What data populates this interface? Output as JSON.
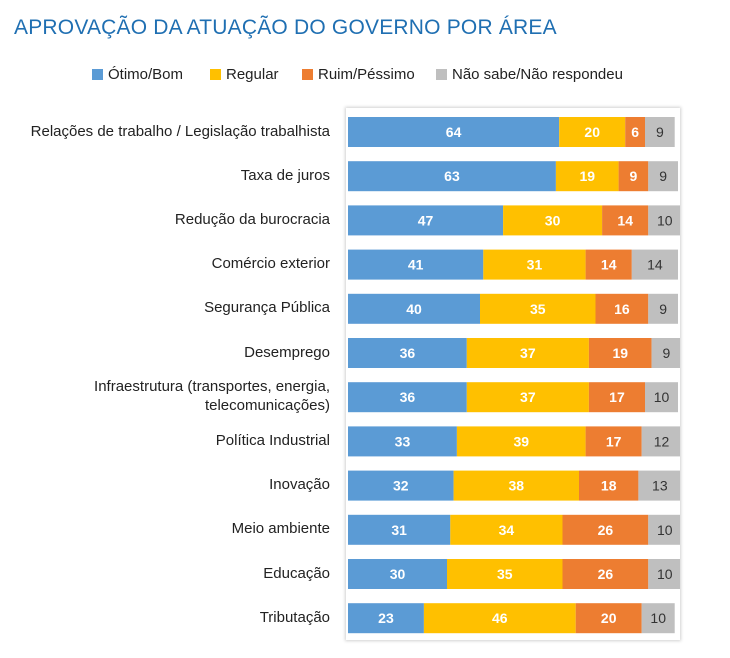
{
  "chart_data": {
    "type": "bar",
    "orientation": "horizontal-stacked",
    "title": "APROVAÇÃO DA ATUAÇÃO DO GOVERNO POR ÁREA",
    "legend_position": "top",
    "categories": [
      [
        "Relações de trabalho / Legislação trabalhista"
      ],
      [
        "Taxa de juros"
      ],
      [
        "Redução da burocracia"
      ],
      [
        "Comércio exterior"
      ],
      [
        "Segurança Pública"
      ],
      [
        "Desemprego"
      ],
      [
        "Infraestrutura (transportes, energia,",
        "telecomunicações)"
      ],
      [
        "Política Industrial"
      ],
      [
        "Inovação"
      ],
      [
        "Meio ambiente"
      ],
      [
        "Educação"
      ],
      [
        "Tributação"
      ]
    ],
    "series": [
      {
        "name": "Ótimo/Bom",
        "color": "#5b9bd5",
        "label_color": "#ffffff",
        "values": [
          64,
          63,
          47,
          41,
          40,
          36,
          36,
          33,
          32,
          31,
          30,
          23
        ]
      },
      {
        "name": "Regular",
        "color": "#ffc000",
        "label_color": "#ffffff",
        "values": [
          20,
          19,
          30,
          31,
          35,
          37,
          37,
          39,
          38,
          34,
          35,
          46
        ]
      },
      {
        "name": "Ruim/Péssimo",
        "color": "#ed7d31",
        "label_color": "#ffffff",
        "values": [
          6,
          9,
          14,
          14,
          16,
          19,
          17,
          17,
          18,
          26,
          26,
          20
        ]
      },
      {
        "name": "Não sabe/Não respondeu",
        "color": "#bfbfbf",
        "label_color": "#333333",
        "values": [
          9,
          9,
          10,
          14,
          9,
          9,
          10,
          12,
          13,
          10,
          10,
          10
        ]
      }
    ],
    "xlim": [
      0,
      100
    ],
    "grid": false
  }
}
